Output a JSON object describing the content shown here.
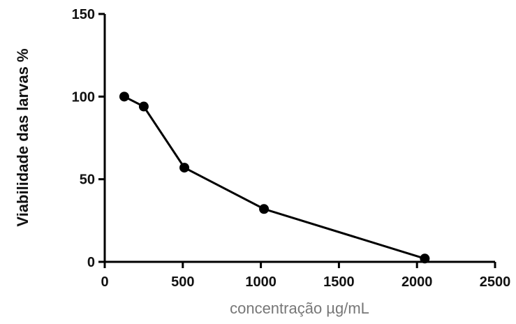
{
  "chart_data": {
    "type": "line",
    "title": "",
    "xlabel": "concentração µg/mL",
    "ylabel": "Viabilidade das larvas %",
    "xlim": [
      0,
      2500
    ],
    "ylim": [
      0,
      150
    ],
    "x_ticks": [
      0,
      500,
      1000,
      1500,
      2000,
      2500
    ],
    "x_tick_labels": [
      "0",
      "500",
      "1000",
      "1500",
      "2000",
      "2500"
    ],
    "y_ticks": [
      0,
      50,
      100,
      150
    ],
    "y_tick_labels": [
      "0",
      "50",
      "100",
      "150"
    ],
    "grid": false,
    "series": [
      {
        "x": [
          125,
          250,
          510,
          1020,
          2050
        ],
        "y": [
          100,
          94,
          57,
          32,
          2
        ],
        "color": "#000000",
        "marker": "circle"
      }
    ]
  }
}
